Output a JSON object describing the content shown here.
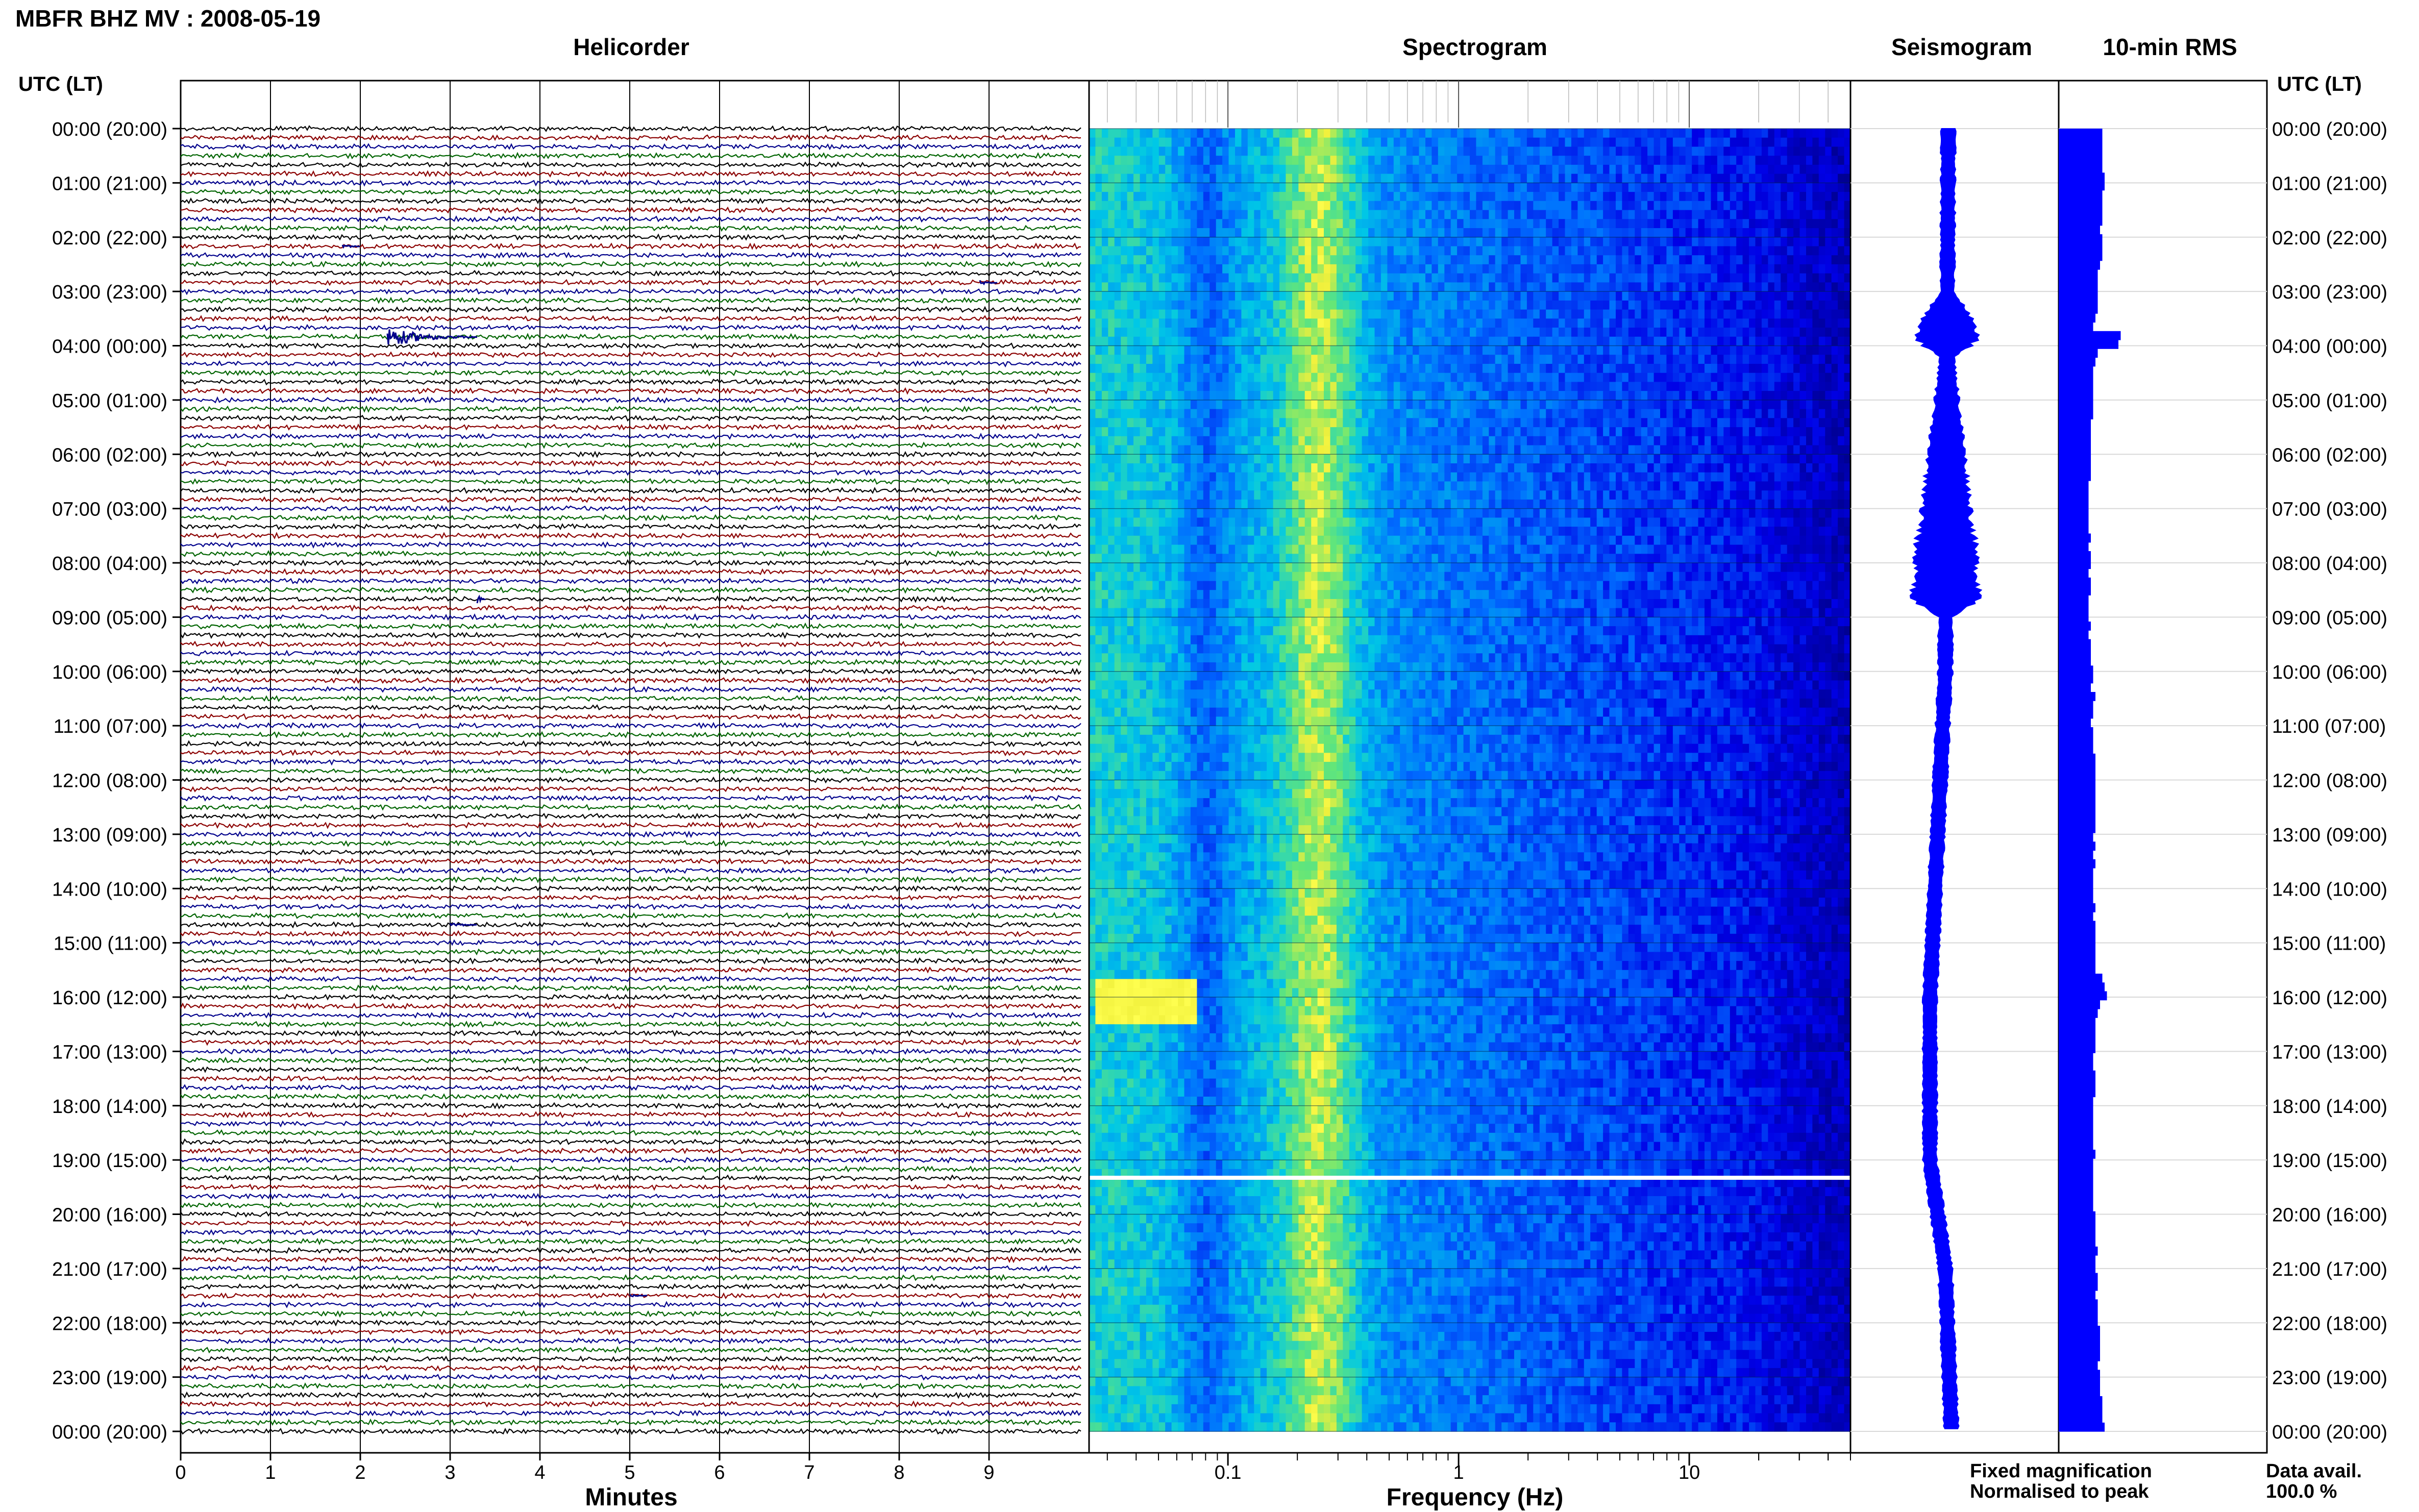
{
  "title": "MBFR BHZ MV : 2008-05-19",
  "panels": {
    "helicorder": "Helicorder",
    "spectrogram": "Spectrogram",
    "seismogram": "Seismogram",
    "rms": "10-min RMS"
  },
  "time_axis_label": "UTC (LT)",
  "time_ticks": [
    "00:00 (20:00)",
    "01:00 (21:00)",
    "02:00 (22:00)",
    "03:00 (23:00)",
    "04:00 (00:00)",
    "05:00 (01:00)",
    "06:00 (02:00)",
    "07:00 (03:00)",
    "08:00 (04:00)",
    "09:00 (05:00)",
    "10:00 (06:00)",
    "11:00 (07:00)",
    "12:00 (08:00)",
    "13:00 (09:00)",
    "14:00 (10:00)",
    "15:00 (11:00)",
    "16:00 (12:00)",
    "17:00 (13:00)",
    "18:00 (14:00)",
    "19:00 (15:00)",
    "20:00 (16:00)",
    "21:00 (17:00)",
    "22:00 (18:00)",
    "23:00 (19:00)",
    "00:00 (20:00)"
  ],
  "legend": {
    "fixed": "Fixed magnification",
    "normalised": "Normalised to peak",
    "fixed_color": "#0000ff",
    "normalised_color": "#ff0000"
  },
  "data_avail": {
    "label": "Data avail.",
    "value": "100.0 %"
  },
  "colors": {
    "trace_cycle": [
      "#000000",
      "#8b0000",
      "#00008b",
      "#006400"
    ],
    "seismogram": "#0000ff",
    "rms": "#0000ff"
  },
  "chart_data": [
    {
      "type": "line",
      "name": "helicorder",
      "xlabel": "Minutes",
      "x_ticks": [
        "0",
        "1",
        "2",
        "3",
        "4",
        "5",
        "6",
        "7",
        "8",
        "9"
      ],
      "xlim": [
        0,
        10
      ],
      "traces_per_hour": 6,
      "hours": 24,
      "events": [
        {
          "time_h": 3.84,
          "minute": 2.3,
          "amp": 1.0,
          "duration_min": 1.0
        },
        {
          "time_h": 8.67,
          "minute": 3.3,
          "amp": 0.5,
          "duration_min": 0.1
        },
        {
          "time_h": 14.67,
          "minute": 3.0,
          "amp": 0.3,
          "duration_min": 0.3
        },
        {
          "time_h": 2.17,
          "minute": 1.8,
          "amp": 0.25,
          "duration_min": 0.2
        },
        {
          "time_h": 2.84,
          "minute": 8.9,
          "amp": 0.25,
          "duration_min": 0.2
        },
        {
          "time_h": 21.5,
          "minute": 5.0,
          "amp": 0.2,
          "duration_min": 0.2
        }
      ]
    },
    {
      "type": "heatmap",
      "name": "spectrogram",
      "xlabel": "Frequency (Hz)",
      "x_scale": "log",
      "xlim": [
        0.025,
        50
      ],
      "x_ticks": [
        {
          "value": 0.1,
          "label": "0.1"
        },
        {
          "value": 1,
          "label": "1"
        },
        {
          "value": 10,
          "label": "10"
        }
      ],
      "gap_time_h": 19.33,
      "hotspot": {
        "time_h": 16.0,
        "freq_hz": 0.045
      }
    },
    {
      "type": "line",
      "name": "seismogram",
      "envelope": [
        {
          "t": 0,
          "half_width": 0.3
        },
        {
          "t": 3,
          "half_width": 0.3
        },
        {
          "t": 3.85,
          "half_width": 1.5
        },
        {
          "t": 4.2,
          "half_width": 0.3
        },
        {
          "t": 8.67,
          "half_width": 1.5
        },
        {
          "t": 9,
          "half_width": 0.3
        },
        {
          "t": 16,
          "half_width": 0.3
        },
        {
          "t": 20,
          "half_width": 0.3
        },
        {
          "t": 24,
          "half_width": 0.3
        }
      ],
      "center_drift": [
        {
          "t": 0,
          "x": 0.0
        },
        {
          "t": 10,
          "x": -0.05
        },
        {
          "t": 16,
          "x": -0.3
        },
        {
          "t": 19,
          "x": -0.3
        },
        {
          "t": 21,
          "x": -0.05
        },
        {
          "t": 24,
          "x": 0.05
        }
      ]
    },
    {
      "type": "bar",
      "name": "10-min RMS",
      "orientation": "horizontal",
      "interval_min": 10,
      "values": [
        0.95,
        0.95,
        0.95,
        0.95,
        0.95,
        1.0,
        1.0,
        0.95,
        0.95,
        0.95,
        0.95,
        0.9,
        0.95,
        0.95,
        0.95,
        0.9,
        0.85,
        0.85,
        0.85,
        0.85,
        0.85,
        0.8,
        0.75,
        1.35,
        1.3,
        0.85,
        0.8,
        0.75,
        0.75,
        0.75,
        0.75,
        0.75,
        0.75,
        0.7,
        0.7,
        0.7,
        0.7,
        0.7,
        0.7,
        0.7,
        0.65,
        0.65,
        0.65,
        0.65,
        0.65,
        0.65,
        0.7,
        0.65,
        0.7,
        0.7,
        0.65,
        0.7,
        0.7,
        0.65,
        0.65,
        0.65,
        0.7,
        0.65,
        0.7,
        0.7,
        0.7,
        0.75,
        0.75,
        0.7,
        0.8,
        0.75,
        0.75,
        0.7,
        0.75,
        0.75,
        0.75,
        0.8,
        0.8,
        0.8,
        0.8,
        0.8,
        0.8,
        0.8,
        0.8,
        0.8,
        0.75,
        0.8,
        0.75,
        0.8,
        0.75,
        0.75,
        0.75,
        0.75,
        0.8,
        0.75,
        0.8,
        0.8,
        0.8,
        0.8,
        0.8,
        0.8,
        0.95,
        1.0,
        1.05,
        0.9,
        0.85,
        0.8,
        0.8,
        0.8,
        0.8,
        0.75,
        0.75,
        0.8,
        0.8,
        0.8,
        0.75,
        0.75,
        0.75,
        0.75,
        0.75,
        0.75,
        0.8,
        0.75,
        0.75,
        0.75,
        0.75,
        0.75,
        0.75,
        0.8,
        0.8,
        0.8,
        0.8,
        0.85,
        0.8,
        0.8,
        0.85,
        0.85,
        0.8,
        0.85,
        0.85,
        0.85,
        0.9,
        0.9,
        0.9,
        0.9,
        0.85,
        0.9,
        0.9,
        0.9,
        0.95,
        0.95,
        0.95,
        1.0
      ]
    }
  ]
}
